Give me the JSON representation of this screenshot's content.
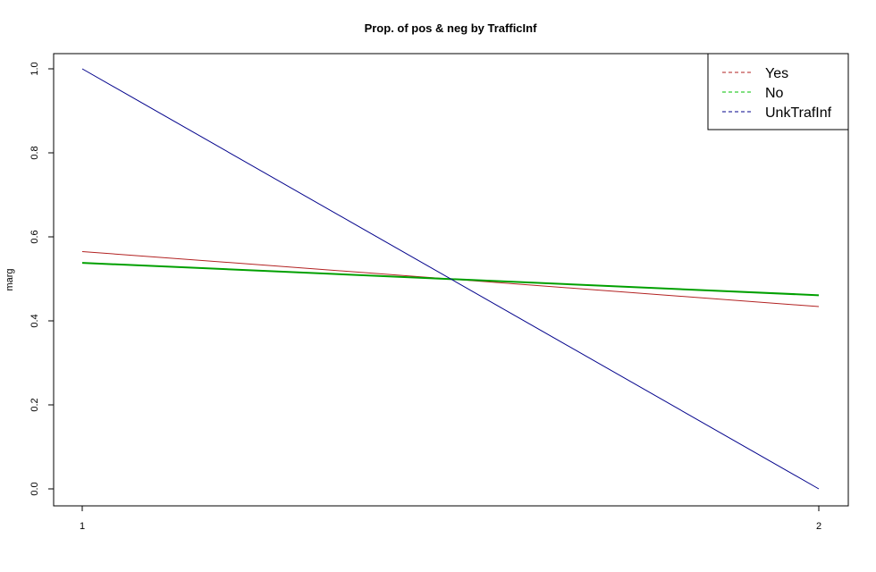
{
  "chart_data": {
    "type": "line",
    "title": "Prop. of pos & neg by TrafficInf",
    "xlabel": "",
    "ylabel": "marg",
    "xlim": [
      1,
      2
    ],
    "ylim": [
      0,
      1
    ],
    "x_ticks": [
      "1",
      "2"
    ],
    "y_ticks": [
      "0.0",
      "0.2",
      "0.4",
      "0.6",
      "0.8",
      "1.0"
    ],
    "grid": false,
    "legend_position": "top-right",
    "series": [
      {
        "name": "Yes",
        "color": "#b22222",
        "x": [
          1,
          2
        ],
        "y": [
          0.565,
          0.434
        ],
        "dash": false
      },
      {
        "name": "No",
        "color": "#00a000",
        "x": [
          1,
          2
        ],
        "y": [
          0.538,
          0.461
        ],
        "dash": false,
        "thick": true
      },
      {
        "name": "UnkTrafInf",
        "color": "#00008b",
        "x": [
          1,
          2
        ],
        "y": [
          1.0,
          0.0
        ],
        "dash": false
      }
    ]
  }
}
